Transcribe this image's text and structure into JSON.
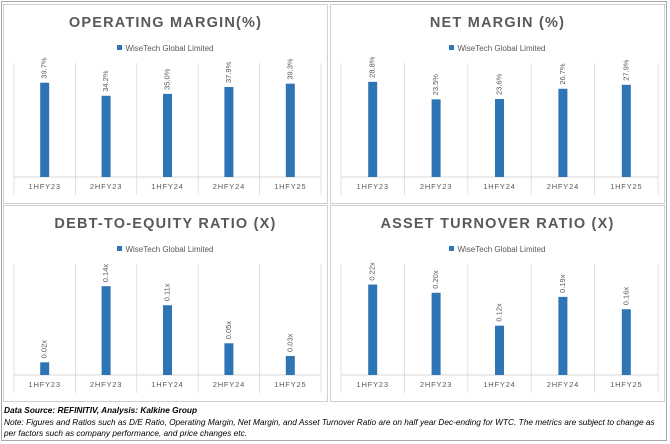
{
  "colors": {
    "bar": "#2e75b6",
    "grid": "#d9d9d9",
    "text": "#595959"
  },
  "chart_data": [
    {
      "type": "bar",
      "title": "OPERATING MARGIN(%)",
      "legend": "WiseTech Global Limited",
      "legend_position": "top",
      "categories": [
        "1HFY23",
        "2HFY23",
        "1HFY24",
        "2HFY24",
        "1HFY25"
      ],
      "series": [
        {
          "name": "WiseTech Global Limited",
          "values": [
            39.7,
            34.2,
            35.0,
            37.9,
            39.3
          ]
        }
      ],
      "data_labels": [
        "39.7%",
        "34.2%",
        "35.0%",
        "37.9%",
        "39.3%"
      ],
      "ylim": [
        0,
        48
      ]
    },
    {
      "type": "bar",
      "title": "NET MARGIN (%)",
      "legend": "WiseTech Global Limited",
      "legend_position": "top",
      "categories": [
        "1HFY23",
        "2HFY23",
        "1HFY24",
        "2HFY24",
        "1HFY25"
      ],
      "series": [
        {
          "name": "WiseTech Global Limited",
          "values": [
            28.8,
            23.5,
            23.6,
            26.7,
            27.9
          ]
        }
      ],
      "data_labels": [
        "28.8%",
        "23.5%",
        "23.6%",
        "26.7%",
        "27.9%"
      ],
      "ylim": [
        0,
        34.5
      ]
    },
    {
      "type": "bar",
      "title": "DEBT-TO-EQUITY  RATIO (X)",
      "legend": "WiseTech Global Limited",
      "legend_position": "top",
      "categories": [
        "1HFY23",
        "2HFY23",
        "1HFY24",
        "2HFY24",
        "1HFY25"
      ],
      "series": [
        {
          "name": "WiseTech Global Limited",
          "values": [
            0.02,
            0.14,
            0.11,
            0.05,
            0.03
          ]
        }
      ],
      "data_labels": [
        "0.02x",
        "0.14x",
        "0.11x",
        "0.05x",
        "0.03x"
      ],
      "ylim": [
        0,
        0.175
      ]
    },
    {
      "type": "bar",
      "title": "ASSET TURNOVER RATIO (X)",
      "legend": "WiseTech Global Limited",
      "legend_position": "top",
      "categories": [
        "1HFY23",
        "2HFY23",
        "1HFY24",
        "2HFY24",
        "1HFY25"
      ],
      "series": [
        {
          "name": "WiseTech Global Limited",
          "values": [
            0.22,
            0.2,
            0.12,
            0.19,
            0.16
          ]
        }
      ],
      "data_labels": [
        "0.22x",
        "0.20x",
        "0.12x",
        "0.19x",
        "0.16x"
      ],
      "ylim": [
        0,
        0.27
      ]
    }
  ],
  "footer": {
    "source": "Data Source: REFINITIV, Analysis: Kalkine Group",
    "note": "Note: Figures and Ratios such as D/E Ratio, Operating Margin, Net Margin, and Asset Turnover Ratio are on half year Dec-ending for WTC. The metrics are subject to change as per factors such as company performance, and price changes etc."
  }
}
